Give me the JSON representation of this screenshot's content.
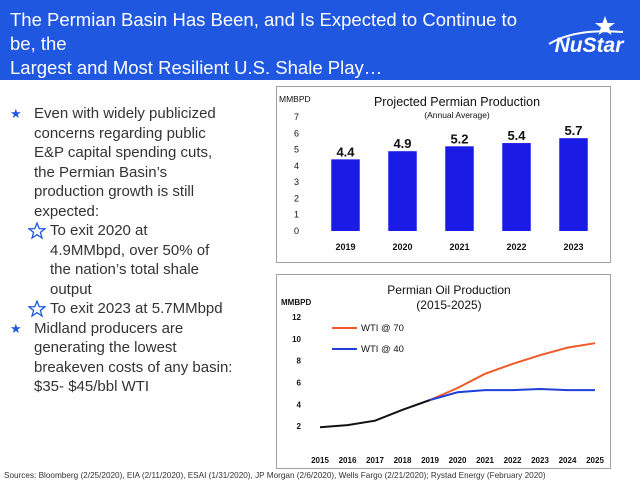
{
  "header": {
    "title_line1": "The Permian Basin Has Been, and Is Expected to Continue to be, the",
    "title_line2": "Largest and Most Resilient U.S. Shale Play…",
    "logo_text": "NuStar"
  },
  "bullets": {
    "b1": [
      "Even with widely publicized",
      "concerns regarding public",
      "E&P capital spending cuts,",
      "the Permian Basin’s",
      "production growth is still",
      "expected:"
    ],
    "s1": [
      "To exit 2020 at",
      "4.9MMbpd, over 50% of",
      "the nation’s total shale",
      "output"
    ],
    "s2": [
      "To exit 2023 at 5.7MMbpd"
    ],
    "b2": [
      "Midland producers are",
      "generating the lowest",
      "breakeven costs of any basin:",
      "$35- $45/bbl WTI"
    ]
  },
  "sources": "Sources: Bloomberg (2/25/2020), EIA (2/11/2020),  ESAI (1/31/2020), JP Morgan (2/6/2020), Wells Fargo (2/21/2020); Rystad Energy (February 2020)",
  "colors": {
    "brand_blue": "#1f57e0",
    "bar_blue": "#1b1be6",
    "wti70": "#f05a28",
    "wti40": "#1f3fd8",
    "history": "#111111"
  },
  "chart_data": [
    {
      "type": "bar",
      "title": "Projected Permian Production",
      "subtitle": "(Annual Average)",
      "ylabel": "MMBPD",
      "categories": [
        "2019",
        "2020",
        "2021",
        "2022",
        "2023"
      ],
      "values": [
        4.4,
        4.9,
        5.2,
        5.4,
        5.7
      ],
      "data_labels": [
        "4.4",
        "4.9",
        "5.2",
        "5.4",
        "5.7"
      ],
      "yticks": [
        "7",
        "6",
        "5",
        "4",
        "3",
        "2",
        "1",
        "0"
      ],
      "ylim": [
        0,
        7
      ],
      "grid": false
    },
    {
      "type": "line",
      "title": "Permian Oil Production",
      "subtitle": "(2015-2025)",
      "ylabel": "MMBPD",
      "x": [
        "2015",
        "2016",
        "2017",
        "2018",
        "2019",
        "2020",
        "2021",
        "2022",
        "2023",
        "2024",
        "2025"
      ],
      "yticks": [
        "12",
        "10",
        "8",
        "6",
        "4",
        "2"
      ],
      "ylim": [
        0,
        12
      ],
      "legend_position": "top-left",
      "series": [
        {
          "name": "",
          "values": [
            1.9,
            2.1,
            2.5,
            3.5,
            4.4,
            null,
            null,
            null,
            null,
            null,
            null
          ]
        },
        {
          "name": "WTI @ 70",
          "values": [
            null,
            null,
            null,
            null,
            4.4,
            5.5,
            6.8,
            7.7,
            8.5,
            9.2,
            9.6
          ]
        },
        {
          "name": "WTI @ 40",
          "values": [
            null,
            null,
            null,
            null,
            4.4,
            5.1,
            5.3,
            5.3,
            5.4,
            5.3,
            5.3
          ]
        }
      ]
    }
  ]
}
